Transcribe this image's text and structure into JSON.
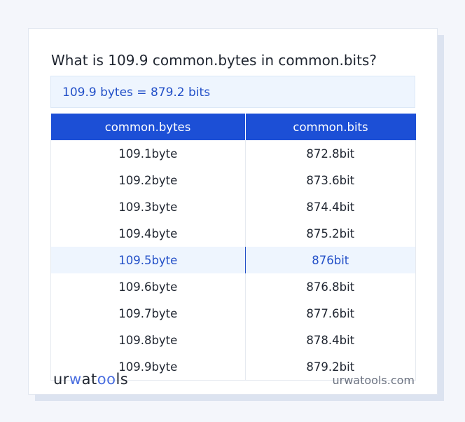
{
  "title": "What is 109.9 common.bytes in common.bits?",
  "result": "109.9 bytes = 879.2 bits",
  "table": {
    "headers": [
      "common.bytes",
      "common.bits"
    ],
    "rows": [
      [
        "109.1byte",
        "872.8bit"
      ],
      [
        "109.2byte",
        "873.6bit"
      ],
      [
        "109.3byte",
        "874.4bit"
      ],
      [
        "109.4byte",
        "875.2bit"
      ],
      [
        "109.5byte",
        "876bit"
      ],
      [
        "109.6byte",
        "876.8bit"
      ],
      [
        "109.7byte",
        "877.6bit"
      ],
      [
        "109.8byte",
        "878.4bit"
      ],
      [
        "109.9byte",
        "879.2bit"
      ]
    ],
    "highlighted_row": 4
  },
  "footer": {
    "logo": "urwatools",
    "logo_parts": [
      "ur",
      "w",
      "at",
      "oo",
      "ls"
    ],
    "site": "urwatools.com"
  },
  "colors": {
    "accent": "#1c4fd6",
    "highlight_bg": "#eef5fe"
  }
}
